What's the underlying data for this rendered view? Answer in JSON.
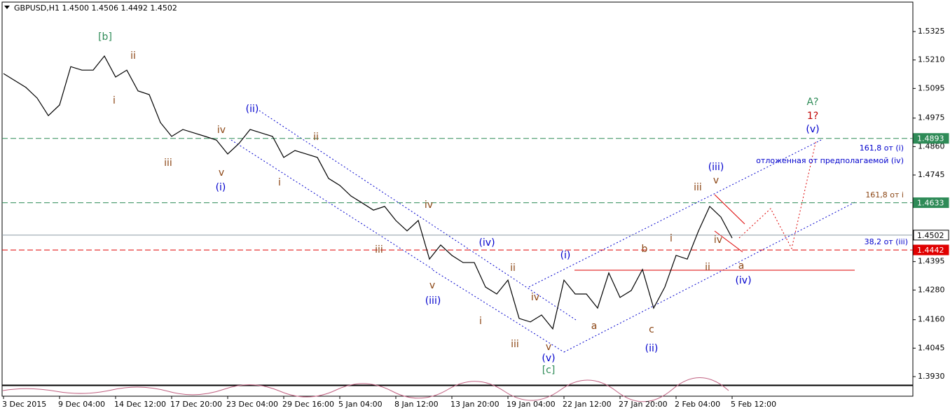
{
  "chart_data": {
    "type": "line",
    "title": "GBPUSD,H1  1.4500 1.4506 1.4492 1.4502",
    "series": [
      {
        "name": "GBPUSD",
        "color": "#000000",
        "values": [
          1.5155,
          1.5127,
          1.5099,
          1.5056,
          1.4985,
          1.5028,
          1.5183,
          1.5169,
          1.5169,
          1.5226,
          1.5141,
          1.5169,
          1.5085,
          1.507,
          1.4957,
          1.4901,
          1.4929,
          1.4915,
          1.4901,
          1.4886,
          1.483,
          1.4872,
          1.4929,
          1.4915,
          1.4901,
          1.4816,
          1.4844,
          1.483,
          1.4816,
          1.4731,
          1.4703,
          1.466,
          1.4632,
          1.4603,
          1.4618,
          1.4561,
          1.4519,
          1.4561,
          1.4405,
          1.4462,
          1.442,
          1.4391,
          1.4391,
          1.4292,
          1.4264,
          1.432,
          1.4165,
          1.4151,
          1.4179,
          1.4123,
          1.432,
          1.4264,
          1.4264,
          1.4207,
          1.4349,
          1.425,
          1.4278,
          1.4363,
          1.4207,
          1.4292,
          1.442,
          1.4405,
          1.4519,
          1.4618,
          1.4575,
          1.449
        ]
      }
    ],
    "ylim": [
      1.3896,
      1.5444
    ],
    "yticks": [
      1.5325,
      {
        "value": 1.521,
        "label": "1.5210"
      },
      1.5095,
      1.4975,
      {
        "value": 1.486,
        "label": "1.4860"
      },
      1.4745,
      1.4395,
      {
        "value": 1.428,
        "label": "1.4280"
      },
      {
        "value": 1.416,
        "label": "1.4160"
      },
      1.4045,
      {
        "value": 1.393,
        "label": "1.3930"
      }
    ],
    "xlim": [
      0,
      65
    ],
    "xticks": [
      {
        "value": 0,
        "label": "3 Dec 2015"
      },
      {
        "value": 5,
        "label": "9 Dec 04:00"
      },
      {
        "value": 10,
        "label": "14 Dec 12:00"
      },
      {
        "value": 15,
        "label": "17 Dec 20:00"
      },
      {
        "value": 20,
        "label": "23 Dec 04:00"
      },
      {
        "value": 25,
        "label": "29 Dec 16:00"
      },
      {
        "value": 30,
        "label": "5 Jan 04:00"
      },
      {
        "value": 35,
        "label": "8 Jan 12:00"
      },
      {
        "value": 40,
        "label": "13 Jan 20:00"
      },
      {
        "value": 45,
        "label": "19 Jan 04:00"
      },
      {
        "value": 50,
        "label": "22 Jan 12:00"
      },
      {
        "value": 55,
        "label": "27 Jan 20:00"
      },
      {
        "value": 60,
        "label": "2 Feb 04:00"
      },
      {
        "value": 65,
        "label": "5 Feb 12:00"
      }
    ],
    "levels": [
      {
        "value": 1.4893,
        "color": "#2e8b57"
      },
      {
        "value": 1.4633,
        "color": "#2e8b57"
      },
      {
        "value": 1.4502,
        "color": "#8a9aa4"
      },
      {
        "value": 1.4442,
        "color": "#e00000"
      }
    ],
    "annotations": [
      {
        "text": "[b]",
        "color": "#2e8b57"
      },
      {
        "text": "ii",
        "color": "#8b4513"
      },
      {
        "text": "i",
        "color": "#8b4513"
      },
      {
        "text": "iii",
        "color": "#8b4513"
      },
      {
        "text": "iv",
        "color": "#8b4513"
      },
      {
        "text": "v",
        "color": "#8b4513"
      },
      {
        "text": "(i)",
        "color": "#0000cd"
      },
      {
        "text": "(ii)",
        "color": "#0000cd"
      },
      {
        "text": "ii",
        "color": "#8b4513"
      },
      {
        "text": "i",
        "color": "#8b4513"
      },
      {
        "text": "iii",
        "color": "#8b4513"
      },
      {
        "text": "iv",
        "color": "#8b4513"
      },
      {
        "text": "v",
        "color": "#8b4513"
      },
      {
        "text": "(iii)",
        "color": "#0000cd"
      },
      {
        "text": "(iv)",
        "color": "#0000cd"
      },
      {
        "text": "ii",
        "color": "#8b4513"
      },
      {
        "text": "i",
        "color": "#8b4513"
      },
      {
        "text": "iv",
        "color": "#8b4513"
      },
      {
        "text": "iii",
        "color": "#8b4513"
      },
      {
        "text": "v",
        "color": "#8b4513"
      },
      {
        "text": "(v)",
        "color": "#0000cd"
      },
      {
        "text": "[c]",
        "color": "#2e8b57"
      },
      {
        "text": "(i)",
        "color": "#0000cd"
      },
      {
        "text": "a",
        "color": "#8b4513"
      },
      {
        "text": "b",
        "color": "#8b4513"
      },
      {
        "text": "c",
        "color": "#8b4513"
      },
      {
        "text": "(ii)",
        "color": "#0000cd"
      },
      {
        "text": "i",
        "color": "#8b4513"
      },
      {
        "text": "iii",
        "color": "#8b4513"
      },
      {
        "text": "(iii)",
        "color": "#0000cd"
      },
      {
        "text": "v",
        "color": "#8b4513"
      },
      {
        "text": "iv",
        "color": "#8b4513"
      },
      {
        "text": "ii",
        "color": "#8b4513"
      },
      {
        "text": "a",
        "color": "#8b4513"
      },
      {
        "text": "(iv)",
        "color": "#0000cd"
      },
      {
        "text": "(v)",
        "color": "#0000cd"
      },
      {
        "text": "1?",
        "color": "#c00000"
      },
      {
        "text": "A?",
        "color": "#2e8b57"
      },
      {
        "text": "161,8 от (i)",
        "color": "#0000cd"
      },
      {
        "text": "отложенная от предполагаемой (iv)",
        "color": "#0000cd"
      },
      {
        "text": "161,8 от i",
        "color": "#8b4513"
      },
      {
        "text": "38,2 от (iii)",
        "color": "#0000cd"
      }
    ]
  }
}
